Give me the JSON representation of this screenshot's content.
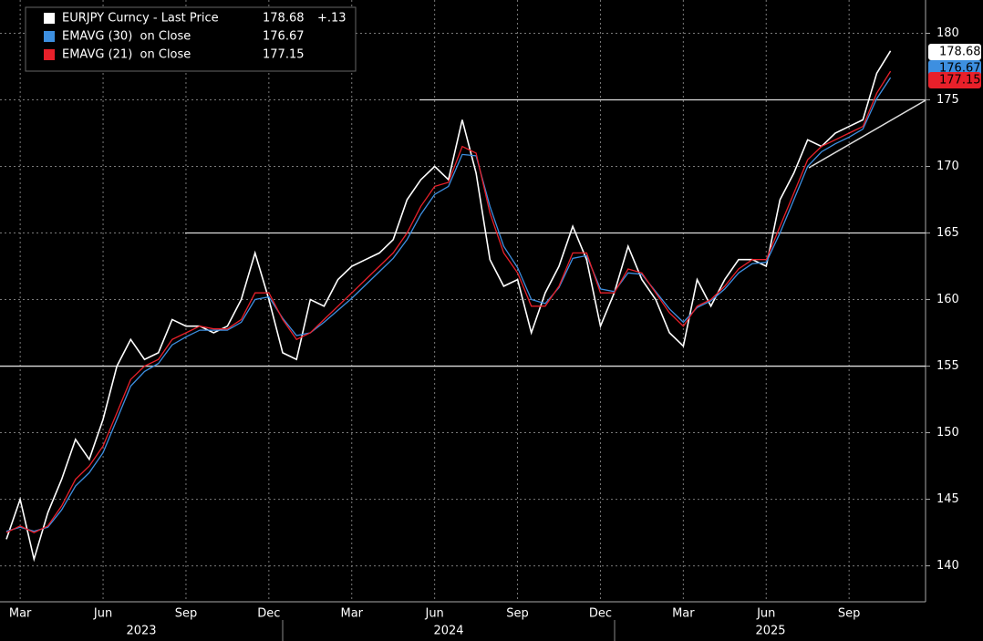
{
  "chart_data": {
    "type": "line",
    "categories": [
      null,
      "Mar",
      null,
      null,
      null,
      null,
      null,
      "Jun",
      null,
      null,
      null,
      null,
      null,
      "Sep",
      null,
      null,
      null,
      null,
      null,
      "Dec",
      null,
      null,
      null,
      null,
      null,
      "Mar",
      null,
      null,
      null,
      null,
      null,
      "Jun",
      null,
      null,
      null,
      null,
      null,
      "Sep",
      null,
      null,
      null,
      null,
      null,
      "Dec",
      null,
      null,
      null,
      null,
      null,
      "Mar",
      null,
      null,
      null,
      null,
      null,
      "Jun",
      null,
      null,
      null,
      null,
      null,
      "Sep",
      null,
      null,
      null
    ],
    "years": [
      "2023",
      "2024",
      "2025"
    ],
    "series": [
      {
        "name": "EURJPY Curncy - Last Price",
        "color": "#ffffff",
        "change": "+.13",
        "values": [
          142,
          145,
          140.5,
          144,
          146.5,
          149.5,
          148,
          151,
          155,
          157,
          155.5,
          156,
          158.5,
          158,
          158,
          157.5,
          158,
          160,
          163.5,
          160,
          156,
          155.5,
          160,
          159.5,
          161.5,
          162.5,
          163,
          163.5,
          164.5,
          167.5,
          169,
          170,
          169,
          173.5,
          169.5,
          163,
          161,
          161.5,
          157.5,
          160.5,
          162.5,
          165.5,
          163,
          158,
          160.5,
          164,
          161.5,
          160,
          157.5,
          156.5,
          161.5,
          159.5,
          161.5,
          163,
          163,
          162.5,
          167.5,
          169.5,
          172,
          171.5,
          172.5,
          173,
          173.5,
          177,
          178.68
        ]
      },
      {
        "name": "EMAVG (30)  on Close",
        "color": "#3d8fe0",
        "values": [
          142.6,
          142.9,
          142.6,
          142.9,
          144.2,
          146,
          147,
          148.5,
          151,
          153.5,
          154.6,
          155.2,
          156.6,
          157.2,
          157.7,
          157.7,
          157.7,
          158.3,
          160,
          160.2,
          158.6,
          157.3,
          157.5,
          158.3,
          159.2,
          160.1,
          161.1,
          162.1,
          163.1,
          164.5,
          166.4,
          167.9,
          168.5,
          170.9,
          170.8,
          167,
          164,
          162.4,
          160,
          159.7,
          160.9,
          163.1,
          163.3,
          160.8,
          160.6,
          162,
          161.9,
          160.6,
          159.3,
          158.3,
          159.4,
          159.9,
          160.8,
          162,
          162.7,
          162.8,
          165,
          167.5,
          170,
          171.1,
          171.7,
          172.2,
          172.8,
          175.1,
          176.67
        ]
      },
      {
        "name": "EMAVG (21)  on Close",
        "color": "#e8202a",
        "values": [
          142.5,
          143,
          142.5,
          143,
          144.5,
          146.5,
          147.5,
          149,
          151.5,
          154,
          155,
          155.5,
          157,
          157.5,
          158,
          157.8,
          157.8,
          158.5,
          160.5,
          160.5,
          158.5,
          157,
          157.5,
          158.5,
          159.5,
          160.5,
          161.5,
          162.5,
          163.5,
          165,
          167,
          168.5,
          168.8,
          171.5,
          171,
          166.5,
          163.5,
          162,
          159.5,
          159.5,
          161,
          163.5,
          163.5,
          160.5,
          160.5,
          162.3,
          162,
          160.5,
          159,
          158,
          159.5,
          160,
          161,
          162.3,
          163,
          163,
          165.5,
          168,
          170.5,
          171.5,
          172,
          172.5,
          173,
          175.5,
          177.15
        ]
      }
    ],
    "hlines": [
      175,
      165,
      155
    ],
    "ylim": [
      137.3,
      182.5
    ],
    "yticks": [
      140,
      145,
      150,
      155,
      160,
      165,
      170,
      175,
      180
    ],
    "grid": true
  }
}
